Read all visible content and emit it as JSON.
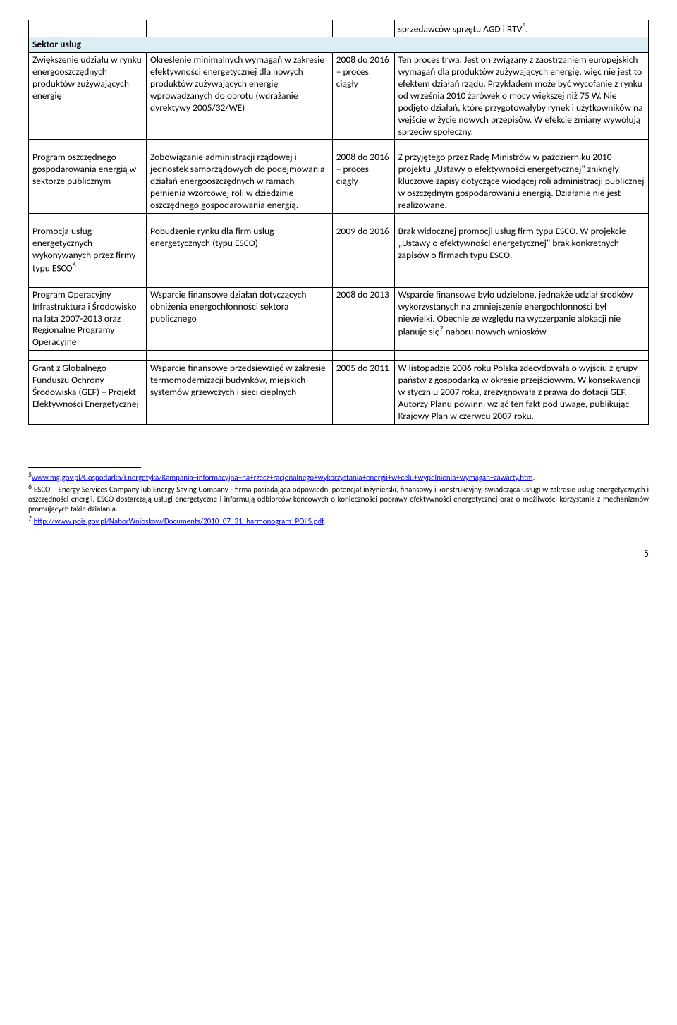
{
  "top_row_c4": "sprzedawców sprzętu AGD i RTV",
  "top_row_sup": "5",
  "section_header": "Sektor usług",
  "rows": [
    {
      "c1": "Zwiększenie udziału w rynku energooszczędnych produktów zużywających energię",
      "c2": "Określenie minimalnych wymagań w zakresie efektywności energetycznej dla nowych produktów zużywających energię wprowadzanych do obrotu (wdrażanie dyrektywy 2005/32/WE)",
      "c3": "2008 do 2016 – proces ciągły",
      "c4": "Ten proces trwa. Jest on związany z zaostrzaniem europejskich wymagań dla produktów zużywających energię, więc nie jest to efektem działań rządu. Przykładem może być wycofanie z rynku od września 2010 żarówek o mocy większej niż 75 W. Nie podjęto działań, które przygotowałyby rynek i użytkowników na wejście w życie nowych przepisów. W efekcie zmiany wywołują sprzeciw społeczny."
    },
    {
      "c1": "Program oszczędnego gospodarowania energią w sektorze publicznym",
      "c2": "Zobowiązanie administracji rządowej i jednostek samorządowych do podejmowania działań energooszczędnych w ramach pełnienia wzorcowej roli w dziedzinie oszczędnego gospodarowania energią.",
      "c3": "2008 do 2016 – proces ciągły",
      "c4": "Z przyjętego przez Radę Ministrów w październiku 2010 projektu „Ustawy o efektywności energetycznej\" zniknęły kluczowe zapisy dotyczące wiodącej roli administracji publicznej w oszczędnym gospodarowaniu energią. Działanie nie jest realizowane."
    },
    {
      "c1_pre": "Promocja usług energetycznych wykonywanych przez firmy typu ESCO",
      "c1_sup": "6",
      "c2": "Pobudzenie rynku dla firm usług energetycznych (typu ESCO)",
      "c3": "2009 do 2016",
      "c4": "Brak widocznej promocji usług firm typu ESCO. W projekcie „Ustawy o efektywności energetycznej\" brak konkretnych zapisów o firmach typu ESCO."
    },
    {
      "c1": "Program Operacyjny Infrastruktura i Środowisko na lata 2007-2013 oraz Regionalne Programy Operacyjne",
      "c2": "Wsparcie finansowe działań dotyczących obniżenia energochłonności sektora publicznego",
      "c3": "2008 do 2013",
      "c4_pre": "Wsparcie finansowe było udzielone, jednakże udział środków wykorzystanych na zmniejszenie energochłonności był niewielki. Obecnie ze względu na wyczerpanie alokacji nie planuje się",
      "c4_sup": "7",
      "c4_post": " naboru nowych wniosków."
    },
    {
      "c1": "Grant z Globalnego Funduszu Ochrony Środowiska (GEF) – Projekt Efektywności Energetycznej",
      "c2": "Wsparcie finansowe przedsięwzięć w zakresie termomodernizacji budynków, miejskich systemów grzewczych i sieci cieplnych",
      "c3": "2005 do 2011",
      "c4": "W listopadzie 2006 roku Polska zdecydowała o wyjściu z grupy państw z gospodarką w okresie przejściowym. W konsekwencji w styczniu 2007 roku, zrezygnowała z prawa do dotacji GEF. Autorzy Planu powinni wziąć ten fakt pod uwagę, publikując Krajowy Plan w czerwcu 2007 roku."
    }
  ],
  "footnotes": {
    "f5_sup": "5",
    "f5_link1": "www.mg.gov.pl/Gospodarka/Energetyka/Kampania+informacyjna+na+rzecz+racjonalnego+wykorzystania+energii+w+celu+wypelnienia+wymagan+zawarty.htm",
    "f5_post": ".",
    "f6_sup": "6",
    "f6_text": " ESCO – Energy Services Company lub Energy Saving Company - firma posiadająca odpowiedni potencjał inżynierski, finansowy i konstrukcyjny, świadcząca usługi w zakresie usług energetycznych i oszczędności energii. ESCO dostarczają usługi energetyczne i informują odbiorców końcowych o konieczności poprawy efektywności energetycznej oraz o możliwości korzystania z mechanizmów promujących takie działania.",
    "f7_sup": "7",
    "f7_link": "http://www.pois.gov.pl/NaborWnioskow/Documents/2010_07_31_harmonogram_POIiS.pdf",
    "f7_post": "."
  },
  "page_number": "5"
}
